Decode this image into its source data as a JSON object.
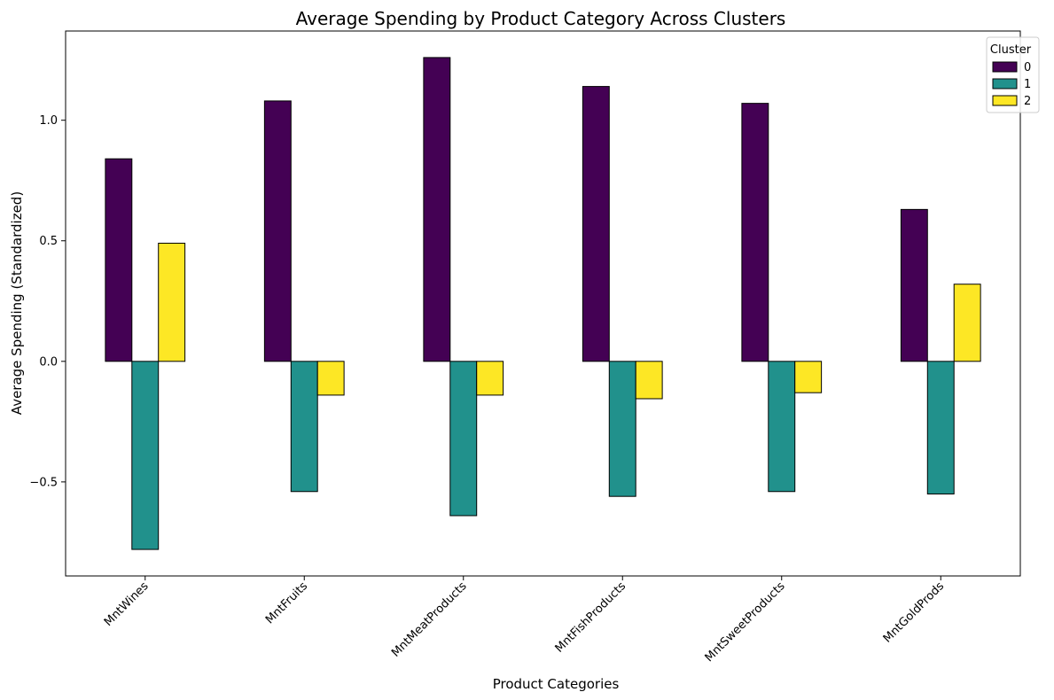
{
  "chart_data": {
    "type": "bar",
    "title": "Average Spending by Product Category Across Clusters",
    "xlabel": "Product Categories",
    "ylabel": "Average Spending (Standardized)",
    "categories": [
      "MntWines",
      "MntFruits",
      "MntMeatProducts",
      "MntFishProducts",
      "MntSweetProducts",
      "MntGoldProds"
    ],
    "series": [
      {
        "name": "0",
        "color": "#440154",
        "values": [
          0.84,
          1.08,
          1.26,
          1.14,
          1.07,
          0.63
        ]
      },
      {
        "name": "1",
        "color": "#21918c",
        "values": [
          -0.78,
          -0.54,
          -0.64,
          -0.56,
          -0.54,
          -0.55
        ]
      },
      {
        "name": "2",
        "color": "#fde725",
        "values": [
          0.49,
          -0.14,
          -0.14,
          -0.155,
          -0.13,
          0.32
        ]
      }
    ],
    "ylim": [
      -0.89,
      1.37
    ],
    "yticks": [
      -0.5,
      0.0,
      0.5,
      1.0
    ],
    "ytick_labels": [
      "−0.5",
      "0.0",
      "0.5",
      "1.0"
    ],
    "grid": false,
    "legend": {
      "title": "Cluster",
      "position": "top-right"
    }
  }
}
